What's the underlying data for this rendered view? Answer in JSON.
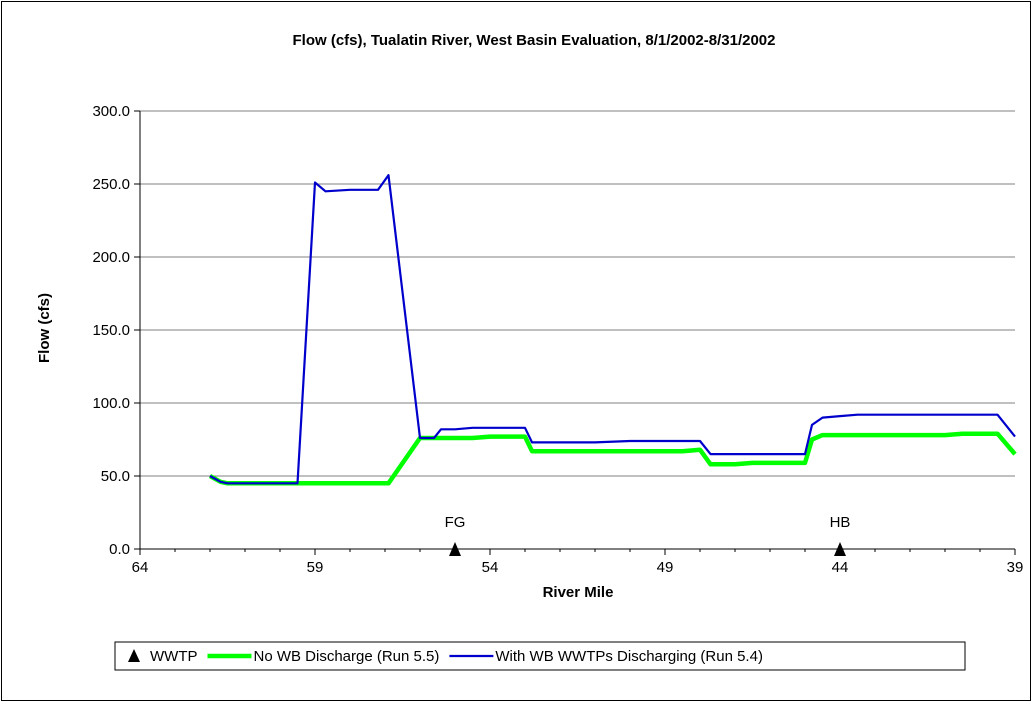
{
  "chart_data": {
    "type": "line",
    "title": "Flow (cfs), Tualatin River, West Basin Evaluation, 8/1/2002-8/31/2002",
    "xlabel": "River Mile",
    "ylabel": "Flow (cfs)",
    "xlim": [
      64,
      39
    ],
    "x_reversed": true,
    "ylim": [
      0,
      300
    ],
    "x_ticks": [
      "64",
      "59",
      "54",
      "49",
      "44",
      "39"
    ],
    "y_ticks": [
      "0.0",
      "50.0",
      "100.0",
      "150.0",
      "200.0",
      "250.0",
      "300.0"
    ],
    "grid": "horizontal",
    "legend_position": "bottom",
    "series": [
      {
        "name": "No WB Discharge (Run 5.5)",
        "color": "#00ff00",
        "x": [
          62.0,
          61.7,
          61.5,
          61.0,
          60.5,
          60.0,
          59.7,
          59.5,
          59.0,
          58.7,
          58.0,
          57.5,
          57.2,
          56.9,
          56.0,
          55.9,
          55.6,
          55.4,
          55.0,
          54.5,
          54.0,
          53.5,
          53.0,
          52.8,
          52.5,
          52.0,
          51.5,
          51.0,
          50.0,
          49.0,
          48.5,
          48.0,
          47.7,
          47.0,
          46.5,
          46.0,
          45.5,
          45.0,
          44.8,
          44.5,
          44.0,
          43.5,
          43.0,
          42.0,
          41.0,
          40.5,
          40.0,
          39.7,
          39.5,
          39.0
        ],
        "values": [
          50,
          46,
          45,
          45,
          45,
          45,
          45,
          45,
          45,
          45,
          45,
          45,
          45,
          45,
          76,
          76,
          76,
          76,
          76,
          76,
          77,
          77,
          77,
          67,
          67,
          67,
          67,
          67,
          67,
          67,
          67,
          68,
          58,
          58,
          59,
          59,
          59,
          59,
          75,
          78,
          78,
          78,
          78,
          78,
          78,
          79,
          79,
          79,
          79,
          65
        ]
      },
      {
        "name": "With WB WWTPs Discharging (Run 5.4)",
        "color": "#0000cc",
        "x": [
          62.0,
          61.7,
          61.5,
          61.0,
          60.5,
          60.0,
          59.7,
          59.5,
          59.0,
          58.7,
          58.0,
          57.5,
          57.2,
          56.9,
          56.0,
          55.9,
          55.6,
          55.4,
          55.0,
          54.5,
          54.0,
          53.5,
          53.0,
          52.8,
          52.5,
          52.0,
          51.5,
          51.0,
          50.0,
          49.0,
          48.5,
          48.0,
          47.7,
          47.0,
          46.5,
          46.0,
          45.5,
          45.0,
          44.8,
          44.5,
          44.0,
          43.5,
          43.0,
          42.0,
          41.0,
          40.5,
          40.0,
          39.7,
          39.5,
          39.0
        ],
        "values": [
          50,
          46,
          45,
          45,
          45,
          45,
          45,
          45,
          251,
          245,
          246,
          246,
          246,
          256,
          76,
          76,
          76,
          82,
          82,
          83,
          83,
          83,
          83,
          73,
          73,
          73,
          73,
          73,
          74,
          74,
          74,
          74,
          65,
          65,
          65,
          65,
          65,
          65,
          85,
          90,
          91,
          92,
          92,
          92,
          92,
          92,
          92,
          92,
          92,
          77
        ]
      }
    ],
    "markers": {
      "name": "WWTP",
      "symbol": "triangle",
      "color": "#000000",
      "points": [
        {
          "x": 55.0,
          "y": 0,
          "label": "FG"
        },
        {
          "x": 44.0,
          "y": 0,
          "label": "HB"
        }
      ]
    },
    "legend": [
      {
        "label": "WWTP",
        "symbol": "triangle",
        "color": "#000000"
      },
      {
        "label": "No WB Discharge (Run 5.5)",
        "symbol": "line",
        "color": "#00ff00"
      },
      {
        "label": "With WB WWTPs Discharging (Run 5.4)",
        "symbol": "line",
        "color": "#0000cc"
      }
    ]
  }
}
